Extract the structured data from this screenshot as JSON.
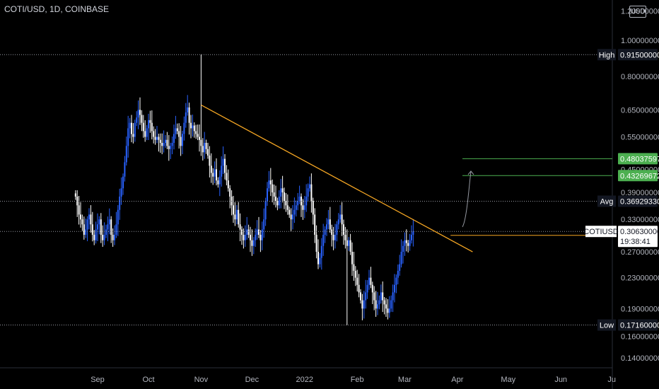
{
  "header": {
    "symbol_line": "COTI/USD, 1D, COINBASE"
  },
  "currency": "USD",
  "chart_data": {
    "type": "candlestick",
    "scale": "log",
    "ylim": [
      0.13,
      1.2
    ],
    "y_ticks": [
      "1.20000000",
      "1.00000000",
      "0.80000000",
      "0.65000000",
      "0.55000000",
      "0.45000000",
      "0.39000000",
      "0.33000000",
      "0.27000000",
      "0.23000000",
      "0.19000000",
      "0.16000000",
      "0.14000000"
    ],
    "x_ticks": [
      "Sep",
      "Oct",
      "Nov",
      "Dec",
      "2022",
      "Feb",
      "Mar",
      "Apr",
      "May",
      "Jun",
      "Ju"
    ],
    "x_tick_dates": [
      "2021-09-01",
      "2021-10-01",
      "2021-11-01",
      "2021-12-01",
      "2022-01-01",
      "2022-02-01",
      "2022-03-01",
      "2022-04-01",
      "2022-05-01",
      "2022-06-01",
      "2022-07-01"
    ],
    "first_candle_date": "2021-08-19",
    "closes": [
      0.38,
      0.36,
      0.34,
      0.33,
      0.32,
      0.3,
      0.31,
      0.33,
      0.34,
      0.32,
      0.3,
      0.29,
      0.31,
      0.32,
      0.33,
      0.3,
      0.29,
      0.3,
      0.31,
      0.32,
      0.33,
      0.3,
      0.29,
      0.3,
      0.32,
      0.35,
      0.38,
      0.4,
      0.43,
      0.47,
      0.52,
      0.58,
      0.6,
      0.56,
      0.55,
      0.6,
      0.62,
      0.65,
      0.63,
      0.6,
      0.57,
      0.55,
      0.58,
      0.61,
      0.6,
      0.57,
      0.55,
      0.54,
      0.55,
      0.54,
      0.53,
      0.52,
      0.53,
      0.54,
      0.52,
      0.51,
      0.52,
      0.53,
      0.56,
      0.58,
      0.57,
      0.55,
      0.52,
      0.56,
      0.6,
      0.64,
      0.66,
      0.6,
      0.58,
      0.59,
      0.57,
      0.56,
      0.55,
      0.54,
      0.52,
      0.5,
      0.53,
      0.51,
      0.49,
      0.46,
      0.44,
      0.43,
      0.45,
      0.42,
      0.41,
      0.43,
      0.46,
      0.48,
      0.44,
      0.42,
      0.4,
      0.38,
      0.36,
      0.34,
      0.33,
      0.35,
      0.32,
      0.31,
      0.3,
      0.29,
      0.3,
      0.31,
      0.3,
      0.29,
      0.28,
      0.29,
      0.3,
      0.31,
      0.3,
      0.29,
      0.31,
      0.33,
      0.37,
      0.4,
      0.42,
      0.41,
      0.39,
      0.38,
      0.37,
      0.36,
      0.38,
      0.4,
      0.39,
      0.37,
      0.36,
      0.35,
      0.34,
      0.33,
      0.34,
      0.35,
      0.36,
      0.37,
      0.38,
      0.36,
      0.35,
      0.36,
      0.38,
      0.4,
      0.41,
      0.37,
      0.34,
      0.3,
      0.27,
      0.25,
      0.26,
      0.28,
      0.3,
      0.31,
      0.32,
      0.33,
      0.31,
      0.3,
      0.29,
      0.3,
      0.32,
      0.33,
      0.34,
      0.32,
      0.3,
      0.29,
      0.28,
      0.29,
      0.27,
      0.25,
      0.24,
      0.23,
      0.22,
      0.21,
      0.2,
      0.19,
      0.2,
      0.21,
      0.22,
      0.23,
      0.22,
      0.21,
      0.2,
      0.19,
      0.195,
      0.2,
      0.21,
      0.2,
      0.195,
      0.19,
      0.185,
      0.19,
      0.2,
      0.21,
      0.22,
      0.23,
      0.24,
      0.25,
      0.27,
      0.28,
      0.29,
      0.285,
      0.28,
      0.29,
      0.3,
      0.306
    ],
    "high": {
      "label": "High",
      "value": "0.91500000"
    },
    "low": {
      "label": "Low",
      "value": "0.17160000"
    },
    "avg": {
      "label": "Avg",
      "value": "0.36929330"
    },
    "last": {
      "symbol": "COTIUSD",
      "value": "0.30630000",
      "countdown": "19:38:41"
    },
    "level_orange": "0.29901101",
    "target_levels": [
      "0.48037597",
      "0.43269672"
    ],
    "trendline": {
      "from": {
        "date": "2021-11-01",
        "value": 0.67
      },
      "to": {
        "date": "2022-04-10",
        "value": 0.27
      }
    },
    "projection_arrow": {
      "from": {
        "date": "2022-04-04",
        "value": 0.315
      },
      "to": {
        "date": "2022-04-09",
        "value": 0.445
      }
    },
    "colors": {
      "up": "#2962ff",
      "down": "#ffffff",
      "trendline": "#f5a623",
      "target": "#4caf50",
      "orange_tag": "#f5a623",
      "tag_bg": "#131722"
    }
  }
}
